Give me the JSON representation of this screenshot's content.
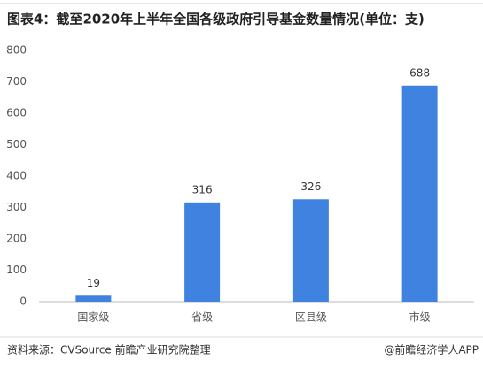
{
  "chart_data": {
    "type": "bar",
    "title": "图表4：截至2020年上半年全国各级政府引导基金数量情况(单位：支)",
    "categories": [
      "国家级",
      "省级",
      "区县级",
      "市级"
    ],
    "values": [
      19,
      316,
      326,
      688
    ],
    "color": "#3f82e0",
    "ylim": [
      0,
      800
    ],
    "yticks": [
      0,
      100,
      200,
      300,
      400,
      500,
      600,
      700,
      800
    ],
    "grid": false,
    "source": "资料来源：CVSource 前瞻产业研究院整理",
    "credit": "@前瞻经济学人APP"
  }
}
